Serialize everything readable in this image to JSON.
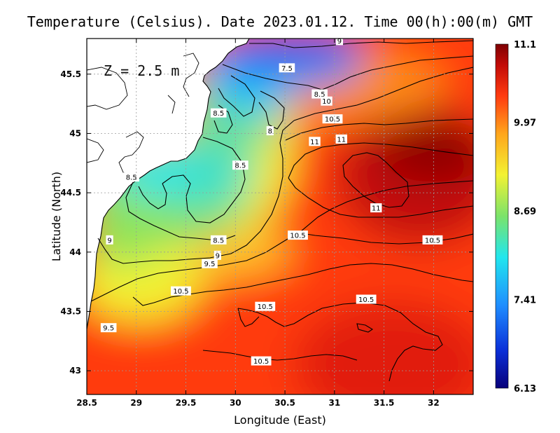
{
  "title": "Temperature (Celsius). Date 2023.01.12. Time 00(h):00(m) GMT",
  "depth_label": "Z = 2.5 m",
  "colors": {
    "ramp": [
      "#08007a",
      "#0a2fd8",
      "#1f8dff",
      "#21e6ee",
      "#7be36a",
      "#f3f232",
      "#ffa51c",
      "#ff3b10",
      "#c20b07",
      "#7e0103"
    ],
    "land": "#ffffff",
    "coast": "#000000",
    "contour": "#000000",
    "grid": "#9a9a9a"
  },
  "chart_data": {
    "type": "heatmap",
    "xlabel": "Longitude (East)",
    "ylabel": "Latitude (North)",
    "xlim": [
      28.5,
      32.4
    ],
    "ylim": [
      42.8,
      45.8
    ],
    "x_ticks": [
      "28.5",
      "29",
      "29.5",
      "30",
      "30.5",
      "31",
      "31.5",
      "32"
    ],
    "y_ticks": [
      "43",
      "43.5",
      "44",
      "44.5",
      "45",
      "45.5"
    ],
    "grid": true,
    "colorbar": {
      "min": 6.13,
      "max": 11.1,
      "tick_labels": [
        "11.1",
        "9.97",
        "8.69",
        "7.41",
        "6.13"
      ]
    },
    "contour_levels": [
      7.5,
      8,
      8.5,
      9,
      9.5,
      10,
      10.5,
      11
    ],
    "contour_labels": [
      {
        "text": "9",
        "lon": 31.05,
        "lat": 45.78
      },
      {
        "text": "7.5",
        "lon": 30.52,
        "lat": 45.55
      },
      {
        "text": "8.5",
        "lon": 30.85,
        "lat": 45.33
      },
      {
        "text": "8.5",
        "lon": 29.83,
        "lat": 45.17
      },
      {
        "text": "8",
        "lon": 30.35,
        "lat": 45.02
      },
      {
        "text": "10",
        "lon": 30.92,
        "lat": 45.27
      },
      {
        "text": "10.5",
        "lon": 30.98,
        "lat": 45.12
      },
      {
        "text": "11",
        "lon": 30.8,
        "lat": 44.93
      },
      {
        "text": "11",
        "lon": 31.07,
        "lat": 44.95
      },
      {
        "text": "8.5",
        "lon": 30.05,
        "lat": 44.73
      },
      {
        "text": "8.5",
        "lon": 28.95,
        "lat": 44.63
      },
      {
        "text": "11",
        "lon": 31.42,
        "lat": 44.37
      },
      {
        "text": "9",
        "lon": 28.73,
        "lat": 44.1
      },
      {
        "text": "8.5",
        "lon": 29.83,
        "lat": 44.1
      },
      {
        "text": "10.5",
        "lon": 30.63,
        "lat": 44.14
      },
      {
        "text": "10.5",
        "lon": 31.99,
        "lat": 44.1
      },
      {
        "text": "9",
        "lon": 29.82,
        "lat": 43.97
      },
      {
        "text": "9.5",
        "lon": 29.74,
        "lat": 43.9
      },
      {
        "text": "10.5",
        "lon": 29.45,
        "lat": 43.67
      },
      {
        "text": "10.5",
        "lon": 30.3,
        "lat": 43.54
      },
      {
        "text": "10.5",
        "lon": 31.32,
        "lat": 43.6
      },
      {
        "text": "9.5",
        "lon": 28.72,
        "lat": 43.36
      },
      {
        "text": "10.5",
        "lon": 30.26,
        "lat": 43.08
      }
    ],
    "colorbar_mapped_levels": [
      6.13,
      7.41,
      8.69,
      9.97,
      11.1
    ]
  }
}
